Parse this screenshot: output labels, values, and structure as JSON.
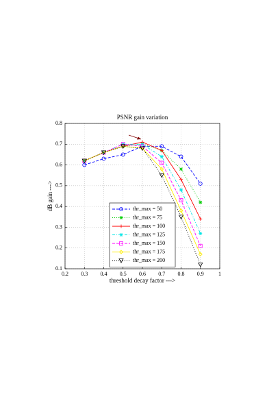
{
  "chart_data": {
    "type": "line",
    "title": "PSNR gain variation",
    "x_label": "threshold decay factor --->",
    "y_label": "dB gain --->",
    "x": [
      0.3,
      0.4,
      0.5,
      0.6,
      0.7,
      0.8,
      0.9
    ],
    "series": [
      {
        "name": "thr_max = 50",
        "color": "#0000ff",
        "linestyle": "dashed",
        "marker": "circle",
        "values": [
          0.6,
          0.63,
          0.65,
          0.69,
          0.69,
          0.64,
          0.51
        ]
      },
      {
        "name": "thr_max = 75",
        "color": "#00cc00",
        "linestyle": "dotted",
        "marker": "asterisk",
        "values": [
          0.62,
          0.66,
          0.69,
          0.7,
          0.67,
          0.58,
          0.42
        ]
      },
      {
        "name": "thr_max = 100",
        "color": "#ff0000",
        "linestyle": "solid",
        "marker": "plus",
        "values": [
          0.62,
          0.66,
          0.69,
          0.71,
          0.67,
          0.53,
          0.34
        ]
      },
      {
        "name": "thr_max = 125",
        "color": "#00e5e5",
        "linestyle": "dashdot",
        "marker": "star",
        "values": [
          0.62,
          0.66,
          0.7,
          0.7,
          0.64,
          0.48,
          0.27
        ]
      },
      {
        "name": "thr_max = 150",
        "color": "#ff00ff",
        "linestyle": "dashed",
        "marker": "square",
        "values": [
          0.62,
          0.66,
          0.7,
          0.69,
          0.61,
          0.43,
          0.21
        ]
      },
      {
        "name": "thr_max = 175",
        "color": "#ffee00",
        "linestyle": "solid",
        "marker": "diamond",
        "values": [
          0.62,
          0.66,
          0.69,
          0.68,
          0.58,
          0.38,
          0.17
        ]
      },
      {
        "name": "thr_max = 200",
        "color": "#000000",
        "linestyle": "dotted",
        "marker": "triangle-down",
        "values": [
          0.62,
          0.66,
          0.69,
          0.68,
          0.55,
          0.35,
          0.12
        ]
      }
    ],
    "xlim": [
      0.2,
      1
    ],
    "xticks": [
      0.2,
      0.3,
      0.4,
      0.5,
      0.6,
      0.7,
      0.8,
      0.9,
      1
    ],
    "ylim": [
      0.1,
      0.8
    ],
    "yticks": [
      0.1,
      0.2,
      0.3,
      0.4,
      0.5,
      0.6,
      0.7,
      0.8
    ],
    "grid": true
  }
}
